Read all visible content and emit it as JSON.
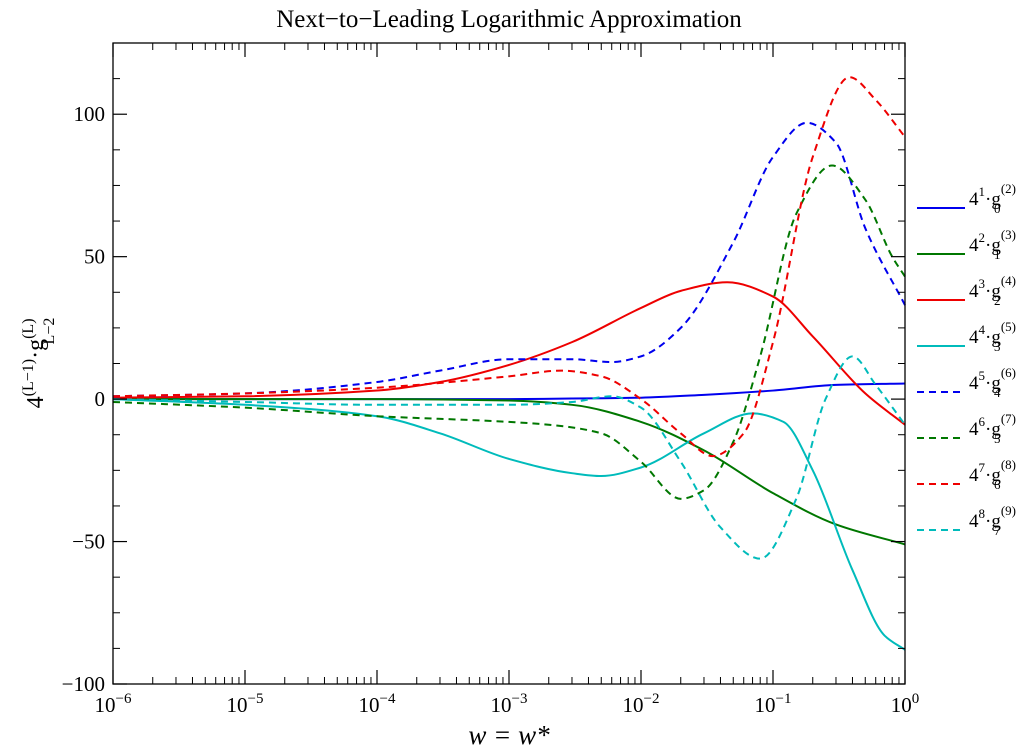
{
  "chart_data": {
    "type": "line",
    "title": "Next−to−Leading Logarithmic Approximation",
    "xlabel": "w = w*",
    "ylabel": {
      "base": "4",
      "base_exp": "(L−1)",
      "dot": "·",
      "g": "g",
      "g_sub": "L−2",
      "g_sup": "(L)"
    },
    "xscale": "log",
    "xlim": [
      1e-06,
      1
    ],
    "ylim": [
      -100,
      125
    ],
    "x_ticks": [
      {
        "value": 1e-06,
        "base": "10",
        "exp": "−6"
      },
      {
        "value": 1e-05,
        "base": "10",
        "exp": "−5"
      },
      {
        "value": 0.0001,
        "base": "10",
        "exp": "−4"
      },
      {
        "value": 0.001,
        "base": "10",
        "exp": "−3"
      },
      {
        "value": 0.01,
        "base": "10",
        "exp": "−2"
      },
      {
        "value": 0.1,
        "base": "10",
        "exp": "−1"
      },
      {
        "value": 1,
        "base": "10",
        "exp": "0"
      }
    ],
    "y_ticks": [
      {
        "value": -100,
        "label": "−100"
      },
      {
        "value": -50,
        "label": "−50"
      },
      {
        "value": 0,
        "label": "0"
      },
      {
        "value": 50,
        "label": "50"
      },
      {
        "value": 100,
        "label": "100"
      }
    ],
    "legend_position": "right, outside plot",
    "series": [
      {
        "label": {
          "pre": "4",
          "pre_sup": "1",
          "sub": "0",
          "sup": "(2)"
        },
        "color": "#0000ee",
        "dash": "solid",
        "x": [
          1e-06,
          1e-05,
          0.0001,
          0.001,
          0.003,
          0.01,
          0.03,
          0.1,
          0.3,
          1
        ],
        "y": [
          0,
          0,
          0,
          0,
          0.2,
          0.5,
          1.5,
          3.0,
          5.0,
          5.5
        ]
      },
      {
        "label": {
          "pre": "4",
          "pre_sup": "2",
          "sub": "1",
          "sup": "(3)"
        },
        "color": "#007700",
        "dash": "solid",
        "x": [
          1e-06,
          1e-05,
          0.0001,
          0.001,
          0.003,
          0.01,
          0.03,
          0.1,
          0.3,
          1
        ],
        "y": [
          0,
          0,
          0,
          -0.5,
          -2,
          -8,
          -18,
          -33,
          -44,
          -51
        ]
      },
      {
        "label": {
          "pre": "4",
          "pre_sup": "3",
          "sub": "2",
          "sup": "(4)"
        },
        "color": "#ee0000",
        "dash": "solid",
        "x": [
          1e-06,
          1e-05,
          0.0001,
          0.0003,
          0.001,
          0.003,
          0.01,
          0.02,
          0.045,
          0.1,
          0.2,
          0.5,
          1
        ],
        "y": [
          0.5,
          1,
          3,
          6,
          12,
          20,
          32,
          38,
          41,
          36,
          22,
          2,
          -9
        ]
      },
      {
        "label": {
          "pre": "4",
          "pre_sup": "4",
          "sub": "3",
          "sup": "(5)"
        },
        "color": "#00bbbb",
        "dash": "solid",
        "x": [
          1e-06,
          1e-05,
          0.0001,
          0.0003,
          0.001,
          0.003,
          0.005,
          0.01,
          0.03,
          0.07,
          0.12,
          0.2,
          0.4,
          0.7,
          1
        ],
        "y": [
          0,
          -2,
          -6,
          -12,
          -21,
          -26,
          -27,
          -24,
          -12,
          -5,
          -8,
          -25,
          -60,
          -83,
          -88
        ]
      },
      {
        "label": {
          "pre": "4",
          "pre_sup": "5",
          "sub": "4",
          "sup": "(6)"
        },
        "color": "#0000ee",
        "dash": "dashed",
        "x": [
          1e-06,
          1e-05,
          0.0001,
          0.0003,
          0.001,
          0.003,
          0.006,
          0.01,
          0.02,
          0.05,
          0.1,
          0.18,
          0.3,
          0.5,
          1
        ],
        "y": [
          1,
          2,
          6,
          10,
          14,
          14,
          13,
          15,
          25,
          55,
          85,
          97,
          90,
          60,
          33
        ]
      },
      {
        "label": {
          "pre": "4",
          "pre_sup": "6",
          "sub": "5",
          "sup": "(7)"
        },
        "color": "#007700",
        "dash": "dashed",
        "x": [
          1e-06,
          1e-05,
          0.0001,
          0.001,
          0.002,
          0.005,
          0.01,
          0.02,
          0.03,
          0.05,
          0.08,
          0.15,
          0.28,
          0.5,
          0.8,
          1
        ],
        "y": [
          -1,
          -3,
          -6,
          -8,
          -9,
          -12,
          -22,
          -35,
          -32,
          -15,
          15,
          65,
          82,
          70,
          50,
          43
        ]
      },
      {
        "label": {
          "pre": "4",
          "pre_sup": "7",
          "sub": "6",
          "sup": "(8)"
        },
        "color": "#ee0000",
        "dash": "dashed",
        "x": [
          1e-06,
          1e-05,
          0.0001,
          0.001,
          0.0025,
          0.005,
          0.01,
          0.02,
          0.035,
          0.06,
          0.1,
          0.2,
          0.38,
          0.6,
          1
        ],
        "y": [
          1,
          2,
          4,
          8,
          10,
          8,
          0,
          -12,
          -20,
          -12,
          20,
          85,
          113,
          105,
          92
        ]
      },
      {
        "label": {
          "pre": "4",
          "pre_sup": "8",
          "sub": "7",
          "sup": "(9)"
        },
        "color": "#00bbbb",
        "dash": "dashed",
        "x": [
          1e-06,
          1e-05,
          0.0001,
          0.001,
          0.003,
          0.006,
          0.01,
          0.02,
          0.04,
          0.08,
          0.15,
          0.25,
          0.4,
          0.6,
          1
        ],
        "y": [
          0,
          -1,
          -2,
          -2,
          -1,
          1,
          -3,
          -22,
          -45,
          -56,
          -35,
          0,
          15,
          5,
          -9
        ]
      }
    ]
  }
}
